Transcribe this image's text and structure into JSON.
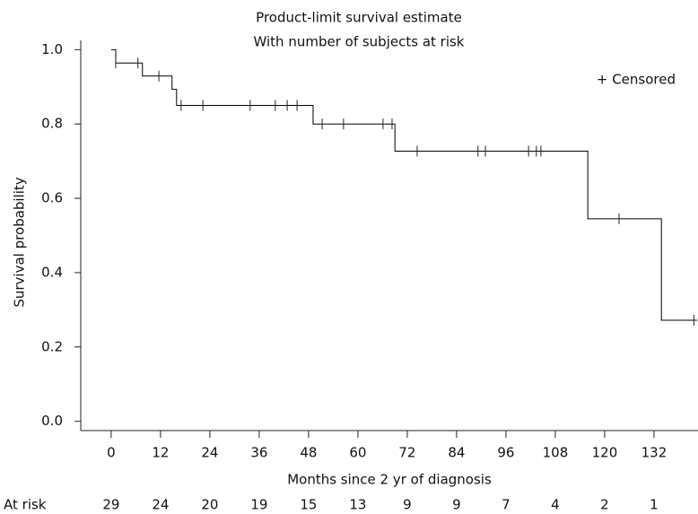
{
  "chart_data": {
    "type": "survival",
    "title": "Product-limit survival estimate",
    "subtitle": "With number of subjects at risk",
    "x_label": "Months since 2 yr of diagnosis",
    "y_label": "Survival probability",
    "legend": "+ Censored",
    "color": "#000000",
    "x": [
      0,
      1.1,
      7.6,
      14.8,
      15.9,
      49.1,
      69.0,
      115.9,
      133.8
    ],
    "values": [
      1.0,
      0.964,
      0.929,
      0.893,
      0.85,
      0.8,
      0.727,
      0.545,
      0.272
    ],
    "censored": {
      "x": [
        1.1,
        6.5,
        11.6,
        17.0,
        22.3,
        33.8,
        39.9,
        42.8,
        45.2,
        51.3,
        56.5,
        66.1,
        68.3,
        74.4,
        89.2,
        91.0,
        101.5,
        103.4,
        104.5,
        123.5,
        141.7
      ],
      "values": [
        0.964,
        0.964,
        0.929,
        0.85,
        0.85,
        0.85,
        0.85,
        0.85,
        0.85,
        0.8,
        0.8,
        0.8,
        0.8,
        0.727,
        0.727,
        0.727,
        0.727,
        0.727,
        0.727,
        0.545,
        0.272
      ]
    },
    "xlim": [
      -7.4,
      142.7
    ],
    "ylim": [
      -0.025,
      1.025
    ],
    "xticks": [
      0,
      12,
      24,
      36,
      48,
      60,
      72,
      84,
      96,
      108,
      120,
      132
    ],
    "yticks": [
      {
        "value": 0,
        "label": "0.0"
      },
      {
        "value": 0.2,
        "label": "0.2"
      },
      {
        "value": 0.4,
        "label": "0.4"
      },
      {
        "value": 0.6,
        "label": "0.6"
      },
      {
        "value": 0.8,
        "label": "0.8"
      },
      {
        "value": 1.0,
        "label": "1.0"
      }
    ],
    "at_risk": {
      "label": "At risk",
      "values": [
        29,
        24,
        20,
        19,
        15,
        13,
        9,
        9,
        7,
        4,
        2,
        1
      ]
    }
  }
}
